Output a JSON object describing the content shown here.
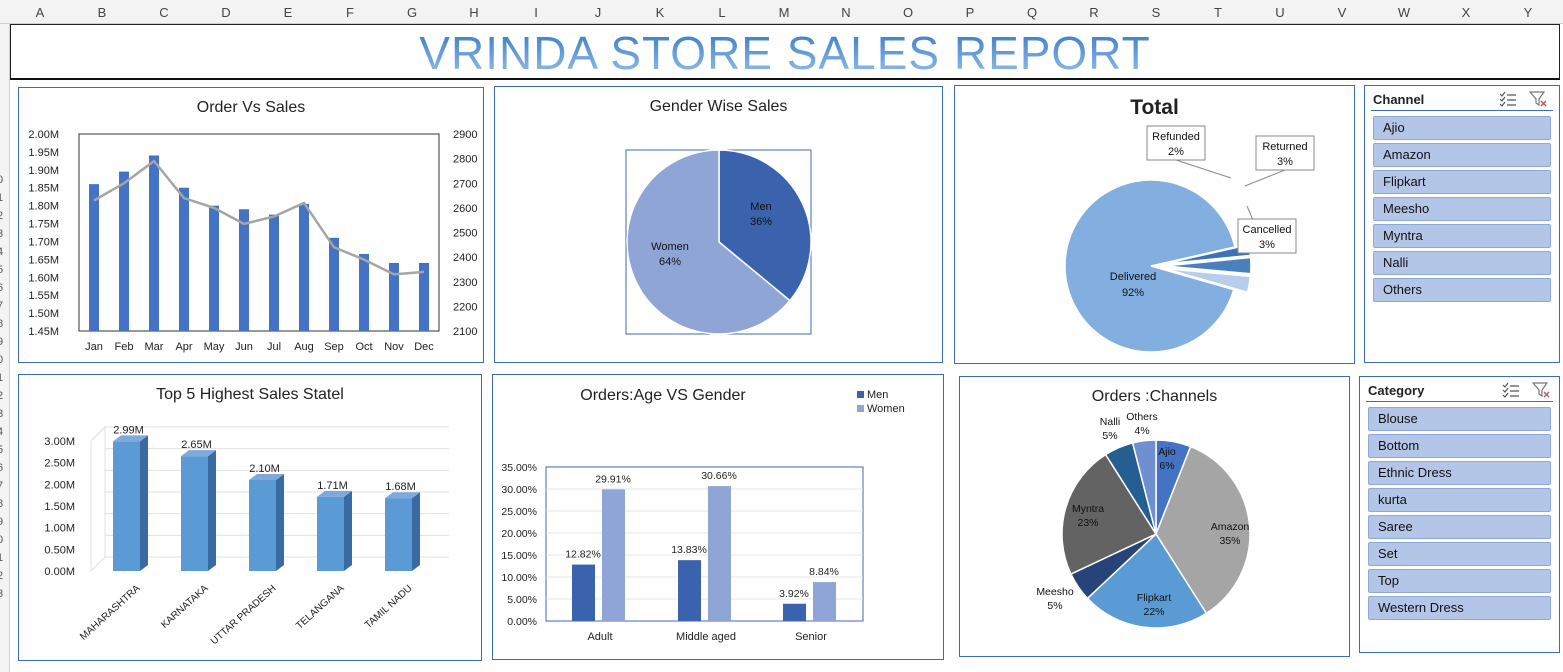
{
  "columns": [
    "A",
    "B",
    "C",
    "D",
    "E",
    "F",
    "G",
    "H",
    "I",
    "J",
    "K",
    "L",
    "M",
    "N",
    "O",
    "P",
    "Q",
    "R",
    "S",
    "T",
    "U",
    "V",
    "W",
    "X",
    "Y"
  ],
  "rows": [
    "0",
    "1",
    "2",
    "3",
    "4",
    "5",
    "6",
    "7",
    "8",
    "9",
    "0",
    "1",
    "2",
    "3",
    "4",
    "5",
    "6",
    "7",
    "8",
    "9",
    "0",
    "1",
    "2",
    "3"
  ],
  "report_title": "VRINDA STORE SALES REPORT",
  "colors": {
    "panel_border": "#3d6bb4",
    "bar_blue": "#4472c4",
    "men": "#3b63ad",
    "women": "#8fa5d6",
    "slicer_item": "#b4c6e7"
  },
  "chart_data": [
    {
      "type": "bar+line",
      "title": "Order Vs Sales",
      "categories": [
        "Jan",
        "Feb",
        "Mar",
        "Apr",
        "May",
        "Jun",
        "Jul",
        "Aug",
        "Sep",
        "Oct",
        "Nov",
        "Dec"
      ],
      "series": [
        {
          "values": [
            1.86,
            1.895,
            1.94,
            1.85,
            1.8,
            1.79,
            1.775,
            1.805,
            1.71,
            1.665,
            1.64,
            1.64
          ],
          "axis": "left"
        },
        {
          "values": [
            2630,
            2700,
            2790,
            2640,
            2600,
            2535,
            2565,
            2620,
            2440,
            2390,
            2330,
            2340
          ],
          "axis": "right"
        }
      ],
      "y_ticks": [
        "2.00M",
        "1.95M",
        "1.90M",
        "1.85M",
        "1.80M",
        "1.75M",
        "1.70M",
        "1.65M",
        "1.60M",
        "1.55M",
        "1.50M",
        "1.45M"
      ],
      "y2_ticks": [
        "2900",
        "2800",
        "2700",
        "2600",
        "2500",
        "2400",
        "2300",
        "2200",
        "2100"
      ],
      "ylim": [
        1.45,
        2.0
      ],
      "y2lim": [
        2100,
        2900
      ]
    },
    {
      "type": "pie",
      "title": "Gender Wise Sales",
      "slices": [
        {
          "label": "Men",
          "value": 36,
          "display": "36%"
        },
        {
          "label": "Women",
          "value": 64,
          "display": "64%"
        }
      ]
    },
    {
      "type": "pie",
      "title": "Total",
      "slices": [
        {
          "label": "Delivered",
          "value": 92,
          "display": "92%"
        },
        {
          "label": "Refunded",
          "value": 2,
          "display": "2%"
        },
        {
          "label": "Returned",
          "value": 3,
          "display": "3%"
        },
        {
          "label": "Cancelled",
          "value": 3,
          "display": "3%"
        }
      ]
    },
    {
      "type": "bar",
      "title": "Top 5 Highest Sales Statel",
      "categories": [
        "MAHARASHTRA",
        "KARNATAKA",
        "UTTAR PRADESH",
        "TELANGANA",
        "TAMIL NADU"
      ],
      "values": [
        2.99,
        2.65,
        2.1,
        1.71,
        1.68
      ],
      "labels": [
        "2.99M",
        "2.65M",
        "2.10M",
        "1.71M",
        "1.68M"
      ],
      "y_ticks": [
        "3.00M",
        "2.50M",
        "2.00M",
        "1.50M",
        "1.00M",
        "0.50M",
        "0.00M"
      ],
      "ylim": [
        0,
        3.0
      ]
    },
    {
      "type": "bar",
      "title": "Orders:Age VS Gender",
      "categories": [
        "Adult",
        "Middle aged",
        "Senior"
      ],
      "series": [
        {
          "name": "Men",
          "values": [
            12.82,
            13.83,
            3.92
          ],
          "labels": [
            "12.82%",
            "13.83%",
            "3.92%"
          ]
        },
        {
          "name": "Women",
          "values": [
            29.91,
            30.66,
            8.84
          ],
          "labels": [
            "29.91%",
            "30.66%",
            "8.84%"
          ]
        }
      ],
      "y_ticks": [
        "35.00%",
        "30.00%",
        "25.00%",
        "20.00%",
        "15.00%",
        "10.00%",
        "5.00%",
        "0.00%"
      ],
      "ylim": [
        0,
        35
      ]
    },
    {
      "type": "pie",
      "title": "Orders :Channels",
      "slices": [
        {
          "label": "Ajio",
          "value": 6,
          "display": "6%"
        },
        {
          "label": "Amazon",
          "value": 35,
          "display": "35%"
        },
        {
          "label": "Flipkart",
          "value": 22,
          "display": "22%"
        },
        {
          "label": "Meesho",
          "value": 5,
          "display": "5%"
        },
        {
          "label": "Myntra",
          "value": 23,
          "display": "23%"
        },
        {
          "label": "Nalli",
          "value": 5,
          "display": "5%"
        },
        {
          "label": "Others",
          "value": 4,
          "display": "4%"
        }
      ]
    }
  ],
  "slicers": {
    "channel": {
      "title": "Channel",
      "items": [
        "Ajio",
        "Amazon",
        "Flipkart",
        "Meesho",
        "Myntra",
        "Nalli",
        "Others"
      ]
    },
    "category": {
      "title": "Category",
      "items": [
        "Blouse",
        "Bottom",
        "Ethnic Dress",
        "kurta",
        "Saree",
        "Set",
        "Top",
        "Western Dress"
      ]
    }
  }
}
